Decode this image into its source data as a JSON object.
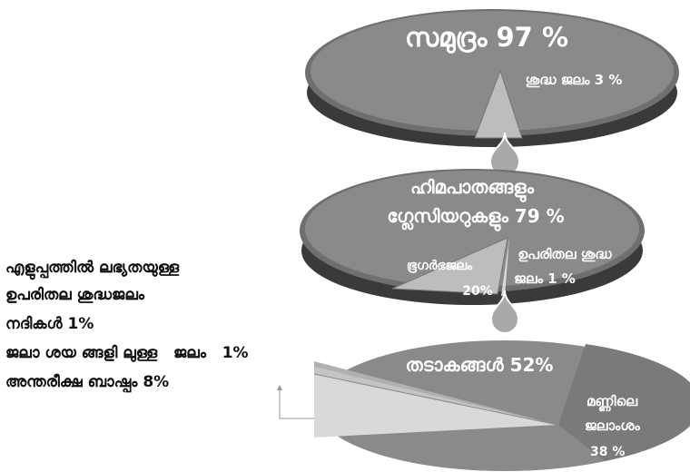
{
  "chart_data": [
    {
      "type": "pie",
      "slices": [
        {
          "label": "സമുദ്രം 97 %",
          "value": 97
        },
        {
          "label": "ശുദ്ധ ജലം 3 %",
          "value": 3
        }
      ]
    },
    {
      "type": "pie",
      "slices": [
        {
          "label": "ഹിമപാതങ്ങളും ഗ്ലേസിയറുകളും 79 %",
          "value": 79
        },
        {
          "label": "ഭൂഗർഭജലം 20%",
          "value": 20
        },
        {
          "label": "ഉപരിതല ശുദ്ധ ജലം 1 %",
          "value": 1
        }
      ]
    },
    {
      "type": "pie",
      "slices": [
        {
          "label": "തടാകങ്ങൾ 52%",
          "value": 52
        },
        {
          "label": "മണ്ണിലെ ജലാംശം 38 %",
          "value": 38
        },
        {
          "label": "നദികൾ 1%",
          "value": 1
        },
        {
          "label": "ജലാശയങ്ങളിലുള്ള ജലം 1%",
          "value": 1
        },
        {
          "label": "അന്തരീക്ഷ ബാഷ്പം 8%",
          "value": 8
        }
      ]
    }
  ],
  "labels": {
    "ocean": "സമുദ്രം 97 %",
    "fresh_water": "ശുദ്ധ ജലം 3 %",
    "glaciers_line1": "ഹിമപാതങ്ങളും",
    "glaciers_line2": "ഗ്ലേസിയറുകളും 79 %",
    "groundwater_name": "ഭൂഗർഭജലം",
    "groundwater_pct": "20%",
    "surface_line1": "ഉപരിതല ശുദ്ധ",
    "surface_line2": "ജലം 1 %",
    "lakes": "തടാകങ്ങൾ 52%",
    "soil_line1": "മണ്ണിലെ",
    "soil_line2": "ജലാംശം",
    "soil_pct": "38 %"
  },
  "side_notes": [
    "എളുപ്പത്തിൽ ലഭ്യതയുള്ള",
    "ഉപരിതല ശുദ്ധജലം",
    "നദികൾ 1%",
    "ജലാ ശയ ങ്ങളി ലുള്ള   ജലം   1%",
    "അന്തരീക്ഷ ബാഷ്പം 8%"
  ],
  "colors": {
    "ellipse_fill": "#8a8a8a",
    "ellipse_shadow": "#3a3a3a",
    "ellipse_rim": "#6f6f6f",
    "wedge": "#bdbdbd",
    "wedge_light": "#d9d9d9",
    "soil": "#7a7a7a",
    "drop": "#a9a9a9"
  }
}
